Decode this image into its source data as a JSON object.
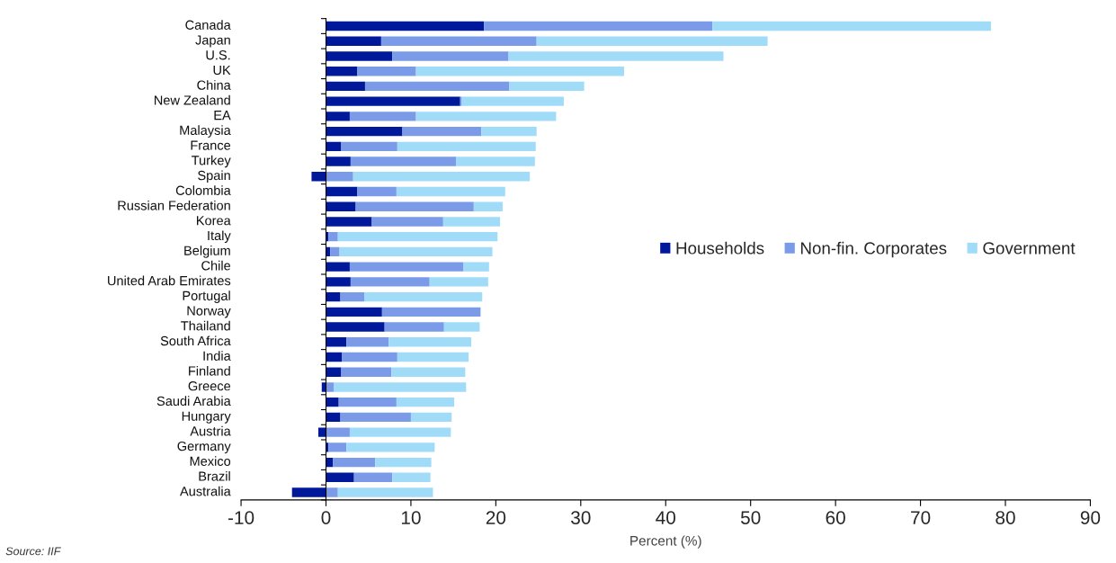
{
  "chart_data": {
    "type": "bar",
    "orientation": "horizontal",
    "stacked": true,
    "categories": [
      "Canada",
      "Japan",
      "U.S.",
      "UK",
      "China",
      "New Zealand",
      "EA",
      "Malaysia",
      "France",
      "Turkey",
      "Spain",
      "Colombia",
      "Russian Federation",
      "Korea",
      "Italy",
      "Belgium",
      "Chile",
      "United Arab Emirates",
      "Portugal",
      "Norway",
      "Thailand",
      "South Africa",
      "India",
      "Finland",
      "Greece",
      "Saudi Arabia",
      "Hungary",
      "Austria",
      "Germany",
      "Mexico",
      "Brazil",
      "Australia"
    ],
    "series": [
      {
        "name": "Households",
        "color": "#00189a",
        "values": [
          18.6,
          6.5,
          7.8,
          3.7,
          4.6,
          15.8,
          2.8,
          9.0,
          1.8,
          2.9,
          -1.7,
          3.7,
          3.5,
          5.4,
          0.3,
          0.5,
          2.8,
          2.9,
          1.7,
          6.6,
          6.9,
          2.4,
          1.9,
          1.8,
          -0.5,
          1.5,
          1.7,
          -0.9,
          0.3,
          0.8,
          3.3,
          -4.0
        ]
      },
      {
        "name": "Non-fin. Corporates",
        "color": "#7b9be8",
        "values": [
          26.9,
          18.3,
          13.7,
          6.9,
          17.0,
          0.2,
          7.8,
          9.3,
          6.6,
          12.4,
          3.2,
          4.6,
          13.9,
          8.4,
          1.1,
          1.1,
          13.4,
          9.3,
          2.8,
          11.6,
          7.0,
          5.0,
          6.5,
          5.9,
          0.9,
          6.8,
          8.3,
          2.8,
          2.1,
          5.0,
          4.5,
          1.4
        ]
      },
      {
        "name": "Government",
        "color": "#a0dcf8",
        "values": [
          32.8,
          27.2,
          25.3,
          24.5,
          8.8,
          12.0,
          16.5,
          6.5,
          16.3,
          9.3,
          20.8,
          12.8,
          3.4,
          6.7,
          18.8,
          18.0,
          3.0,
          6.9,
          13.9,
          0.0,
          4.2,
          9.7,
          8.4,
          8.7,
          15.6,
          6.8,
          4.8,
          11.9,
          10.4,
          6.6,
          4.5,
          11.2
        ]
      }
    ],
    "xlabel": "Percent (%)",
    "xlim": [
      -10,
      90
    ],
    "xticks": [
      -10,
      0,
      10,
      20,
      30,
      40,
      50,
      60,
      70,
      80,
      90
    ],
    "legend": "right",
    "annotations": [
      "Source: IIF"
    ]
  }
}
